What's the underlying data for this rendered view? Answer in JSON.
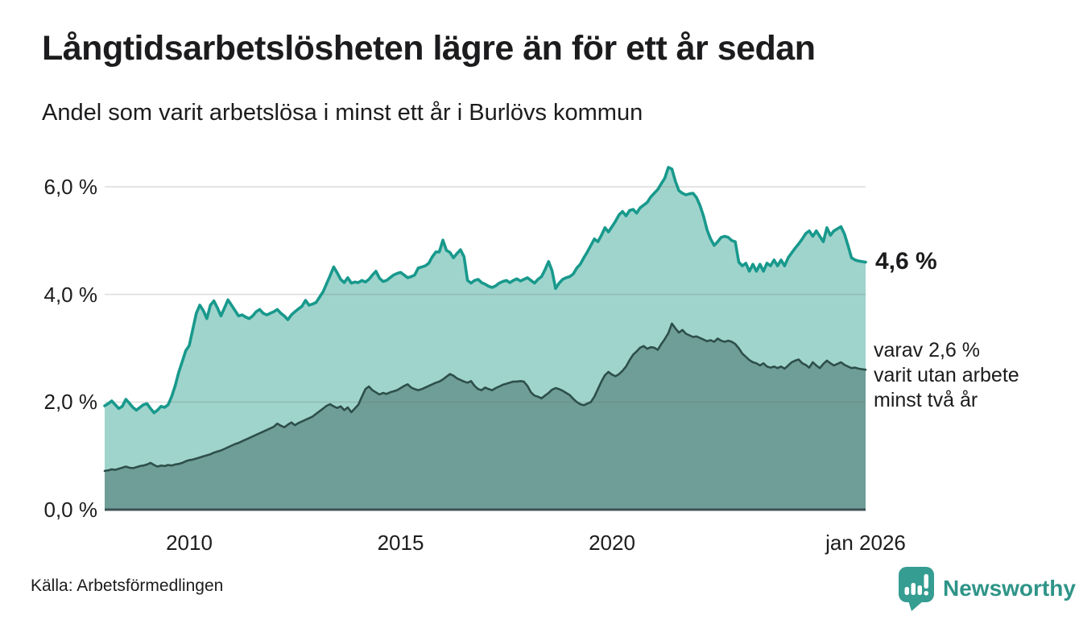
{
  "title": "Långtidsarbetslösheten lägre än för ett år sedan",
  "subtitle": "Andel som varit arbetslösa i minst ett år i Burlövs kommun",
  "source": "Källa: Arbetsförmedlingen",
  "branding": {
    "name": "Newsworthy",
    "icon": "newsworthy-speech-bubble-chart-icon",
    "icon_color": "#359d91",
    "text_color": "#2e9488"
  },
  "annotations": {
    "latest_primary": "4,6 %",
    "secondary": "varav 2,6 %\nvarit utan arbete\nminst två år"
  },
  "colors": {
    "series1_line": "#18998c",
    "series1_fill": "#9fd4cc",
    "series2_line": "#2e4f4b",
    "series2_fill": "#6f9d97",
    "baseline": "#3d5153",
    "gridline": "rgba(110,110,110,0.25)",
    "text": "#1c1c1e"
  },
  "chart_data": {
    "type": "area",
    "title": "Långtidsarbetslösheten lägre än för ett år sedan",
    "subtitle": "Andel som varit arbetslösa i minst ett år i Burlövs kommun",
    "unit": "percent",
    "interval": "monthly",
    "x_start": "2008-01",
    "x_end": "2026-01",
    "ylim": [
      0,
      6.6
    ],
    "grid": true,
    "legend": "none",
    "y_ticks": [
      {
        "label": "0,0 %",
        "value": 0
      },
      {
        "label": "2,0 %",
        "value": 2
      },
      {
        "label": "4,0 %",
        "value": 4
      },
      {
        "label": "6,0 %",
        "value": 6
      }
    ],
    "x_ticks": [
      {
        "label": "2010",
        "index": 24
      },
      {
        "label": "2015",
        "index": 84
      },
      {
        "label": "2020",
        "index": 144
      },
      {
        "label": "jan 2026",
        "index": 216
      }
    ],
    "series": [
      {
        "name": "Andel arbetslösa minst ett år",
        "latest_label": "4,6 %",
        "latest_value": 4.6,
        "line_color": "#18998c",
        "fill_color": "#9fd4cc",
        "values": [
          1.93,
          1.97,
          2.02,
          1.95,
          1.88,
          1.92,
          2.05,
          1.98,
          1.9,
          1.85,
          1.9,
          1.95,
          1.97,
          1.88,
          1.8,
          1.85,
          1.92,
          1.9,
          1.95,
          2.1,
          2.3,
          2.55,
          2.75,
          2.95,
          3.05,
          3.35,
          3.65,
          3.8,
          3.7,
          3.55,
          3.8,
          3.88,
          3.75,
          3.6,
          3.75,
          3.9,
          3.8,
          3.7,
          3.6,
          3.62,
          3.58,
          3.55,
          3.6,
          3.68,
          3.72,
          3.65,
          3.62,
          3.65,
          3.68,
          3.72,
          3.65,
          3.6,
          3.53,
          3.62,
          3.68,
          3.73,
          3.78,
          3.89,
          3.8,
          3.82,
          3.85,
          3.95,
          4.05,
          4.2,
          4.35,
          4.51,
          4.4,
          4.28,
          4.22,
          4.31,
          4.21,
          4.23,
          4.22,
          4.26,
          4.23,
          4.28,
          4.36,
          4.43,
          4.3,
          4.24,
          4.26,
          4.31,
          4.36,
          4.39,
          4.41,
          4.36,
          4.31,
          4.33,
          4.36,
          4.49,
          4.51,
          4.53,
          4.58,
          4.7,
          4.79,
          4.79,
          5.01,
          4.82,
          4.78,
          4.68,
          4.76,
          4.83,
          4.7,
          4.26,
          4.21,
          4.26,
          4.28,
          4.22,
          4.19,
          4.15,
          4.13,
          4.16,
          4.21,
          4.24,
          4.26,
          4.22,
          4.26,
          4.29,
          4.25,
          4.28,
          4.31,
          4.26,
          4.21,
          4.28,
          4.33,
          4.46,
          4.61,
          4.44,
          4.11,
          4.21,
          4.28,
          4.31,
          4.33,
          4.38,
          4.49,
          4.56,
          4.68,
          4.79,
          4.91,
          5.03,
          4.98,
          5.1,
          5.24,
          5.16,
          5.26,
          5.36,
          5.48,
          5.54,
          5.46,
          5.56,
          5.58,
          5.51,
          5.61,
          5.66,
          5.71,
          5.81,
          5.88,
          5.95,
          6.06,
          6.16,
          6.36,
          6.33,
          6.1,
          5.93,
          5.88,
          5.85,
          5.87,
          5.88,
          5.8,
          5.65,
          5.45,
          5.2,
          5.03,
          4.91,
          4.98,
          5.06,
          5.08,
          5.06,
          5.0,
          4.98,
          4.6,
          4.53,
          4.58,
          4.43,
          4.56,
          4.43,
          4.56,
          4.43,
          4.58,
          4.53,
          4.64,
          4.53,
          4.64,
          4.53,
          4.68,
          4.77,
          4.86,
          4.94,
          5.03,
          5.13,
          5.18,
          5.08,
          5.18,
          5.08,
          4.98,
          5.24,
          5.1,
          5.18,
          5.22,
          5.26,
          5.12,
          4.91,
          4.68,
          4.64,
          4.62,
          4.61,
          4.6
        ]
      },
      {
        "name": "Andel arbetslösa minst två år",
        "latest_label": "varav 2,6 % varit utan arbete minst två år",
        "latest_value": 2.6,
        "line_color": "#2e4f4b",
        "fill_color": "#6f9d97",
        "values": [
          0.72,
          0.73,
          0.75,
          0.74,
          0.76,
          0.78,
          0.8,
          0.78,
          0.77,
          0.79,
          0.81,
          0.82,
          0.84,
          0.87,
          0.83,
          0.8,
          0.82,
          0.81,
          0.83,
          0.82,
          0.84,
          0.85,
          0.87,
          0.9,
          0.92,
          0.93,
          0.95,
          0.97,
          0.99,
          1.01,
          1.03,
          1.06,
          1.08,
          1.1,
          1.13,
          1.16,
          1.19,
          1.22,
          1.24,
          1.27,
          1.3,
          1.33,
          1.36,
          1.39,
          1.42,
          1.45,
          1.48,
          1.51,
          1.54,
          1.6,
          1.56,
          1.53,
          1.58,
          1.62,
          1.57,
          1.61,
          1.64,
          1.67,
          1.7,
          1.73,
          1.78,
          1.83,
          1.88,
          1.93,
          1.96,
          1.92,
          1.89,
          1.92,
          1.85,
          1.9,
          1.81,
          1.88,
          1.95,
          2.1,
          2.24,
          2.29,
          2.22,
          2.18,
          2.14,
          2.17,
          2.15,
          2.18,
          2.2,
          2.22,
          2.26,
          2.3,
          2.33,
          2.27,
          2.24,
          2.22,
          2.24,
          2.27,
          2.3,
          2.33,
          2.36,
          2.38,
          2.42,
          2.47,
          2.52,
          2.49,
          2.44,
          2.41,
          2.38,
          2.36,
          2.39,
          2.3,
          2.24,
          2.22,
          2.27,
          2.24,
          2.22,
          2.26,
          2.29,
          2.32,
          2.34,
          2.36,
          2.38,
          2.38,
          2.39,
          2.38,
          2.3,
          2.18,
          2.12,
          2.1,
          2.07,
          2.12,
          2.17,
          2.23,
          2.26,
          2.24,
          2.21,
          2.17,
          2.13,
          2.06,
          2.0,
          1.96,
          1.94,
          1.97,
          2.0,
          2.1,
          2.24,
          2.38,
          2.5,
          2.56,
          2.51,
          2.48,
          2.52,
          2.58,
          2.66,
          2.78,
          2.88,
          2.94,
          3.01,
          3.04,
          2.99,
          3.02,
          3.01,
          2.97,
          3.08,
          3.17,
          3.28,
          3.46,
          3.37,
          3.29,
          3.34,
          3.27,
          3.24,
          3.21,
          3.22,
          3.19,
          3.16,
          3.13,
          3.15,
          3.12,
          3.18,
          3.14,
          3.12,
          3.14,
          3.12,
          3.08,
          3.0,
          2.9,
          2.84,
          2.78,
          2.74,
          2.72,
          2.68,
          2.72,
          2.66,
          2.64,
          2.66,
          2.63,
          2.66,
          2.62,
          2.68,
          2.74,
          2.77,
          2.79,
          2.72,
          2.69,
          2.64,
          2.74,
          2.68,
          2.63,
          2.71,
          2.77,
          2.72,
          2.68,
          2.71,
          2.74,
          2.69,
          2.66,
          2.63,
          2.64,
          2.62,
          2.61,
          2.6
        ]
      }
    ]
  }
}
